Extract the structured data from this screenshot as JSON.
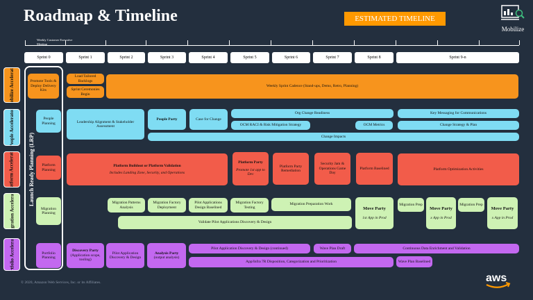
{
  "title": "Roadmap & Timeline",
  "estimated_label": "ESTIMATED TIMELINE",
  "mobilize_label": "Mobilize",
  "executive_note": "Weekly Customer Executive Meeting",
  "sprints": [
    "Sprint 0",
    "Sprint 1",
    "Sprint 2",
    "Sprint 3",
    "Sprint 4",
    "Sprint 5",
    "Sprint 6",
    "Sprint 7",
    "Sprint 8",
    "Sprint 9-n"
  ],
  "lanes": [
    "Mobilize Accelerator",
    "People Accelerator",
    "Platform Accelerator",
    "Migration Accelerator",
    "Portfolio Accelerator"
  ],
  "lrp_label": "Launch Ready Planning (LRP)",
  "boxes": {
    "promote": "Promote Tools & Deploy Delivery Kits",
    "load_backlogs": "Load Tailored Backlogs",
    "sprint_ceremonies": "Sprint Ceremonies Begin",
    "weekly_cadence": "Weekly Sprint Cadence (Stand-ups, Demo, Retro, Planning)",
    "people_planning": "People Planning",
    "leadership": "Leadership Alignment & Stakeholder Assessment",
    "people_party": "People Party",
    "case_change": "Case for Change",
    "org_change": "Org Change Readiness",
    "ocm_raci": "OCM RACI & Risk Mitigation Strategy",
    "ocm_metrics": "OCM Metrics",
    "key_messaging": "Key Messaging for Communications",
    "change_strategy": "Change Strategy & Plan",
    "change_impacts": "Change Impacts",
    "platform_planning": "Platform Planning",
    "buildout": "Platform Buildout or Platform Validation",
    "buildout_sub": "Includes Landing Zone, Security, and Operations",
    "platform_party": "Platform Party",
    "platform_party_sub": "Promote 1st app to Dev",
    "remediation": "Platform Party Remediation",
    "security_jam": "Security Jam & Operations Game Day",
    "baselined": "Platform Baselined",
    "optimization": "Platform Optimization Activities",
    "migration_planning": "Migration Planning",
    "patterns": "Migration Patterns Analysis",
    "factory_deploy": "Migration Factory Deployment",
    "pilot_design": "Pilot Applications Design Baselined",
    "factory_testing": "Migration Factory Testing",
    "prep_work": "Migration Preparation Work",
    "validate": "Validate Pilot Applications Discovery & Design",
    "move_party_1": "Move Party",
    "move_party_1_sub": "1st App in Prod",
    "mig_prep_1": "Migration Prep",
    "move_party_2": "Move Party",
    "move_party_2_sub": "x App in Prod",
    "mig_prep_2": "Migration Prep",
    "move_party_3": "Move Party",
    "move_party_3_sub": "x App in Prod",
    "portfolio_planning": "Portfolio Planning",
    "discovery_party": "Discovery Party",
    "discovery_party_sub": "(Application scope, tooling)",
    "pilot_discovery": "Pilot Application Discovery & Design",
    "analysis_party": "Analysis Party",
    "analysis_party_sub": "(output analysis)",
    "pilot_continued": "Pilot Application Discovery & Design (continued)",
    "wave_draft": "Wave Plan Draft",
    "continuous": "Continuous Data Enrichment and Validation",
    "app_infra": "App/Infra 7R Disposition, Categorization and Prioritization",
    "wave_baselined": "Wave Plan Baselined"
  },
  "copyright": "© 2020, Amazon Web Services, Inc. or its Affiliates.",
  "aws_logo": "aws",
  "colors": {
    "bg": "#232f3e",
    "orange": "#f7941d",
    "cyan": "#7fdcf3",
    "red": "#f25c4a",
    "green": "#cef2b4",
    "purple": "#c368f0",
    "accent": "#ff9900"
  }
}
